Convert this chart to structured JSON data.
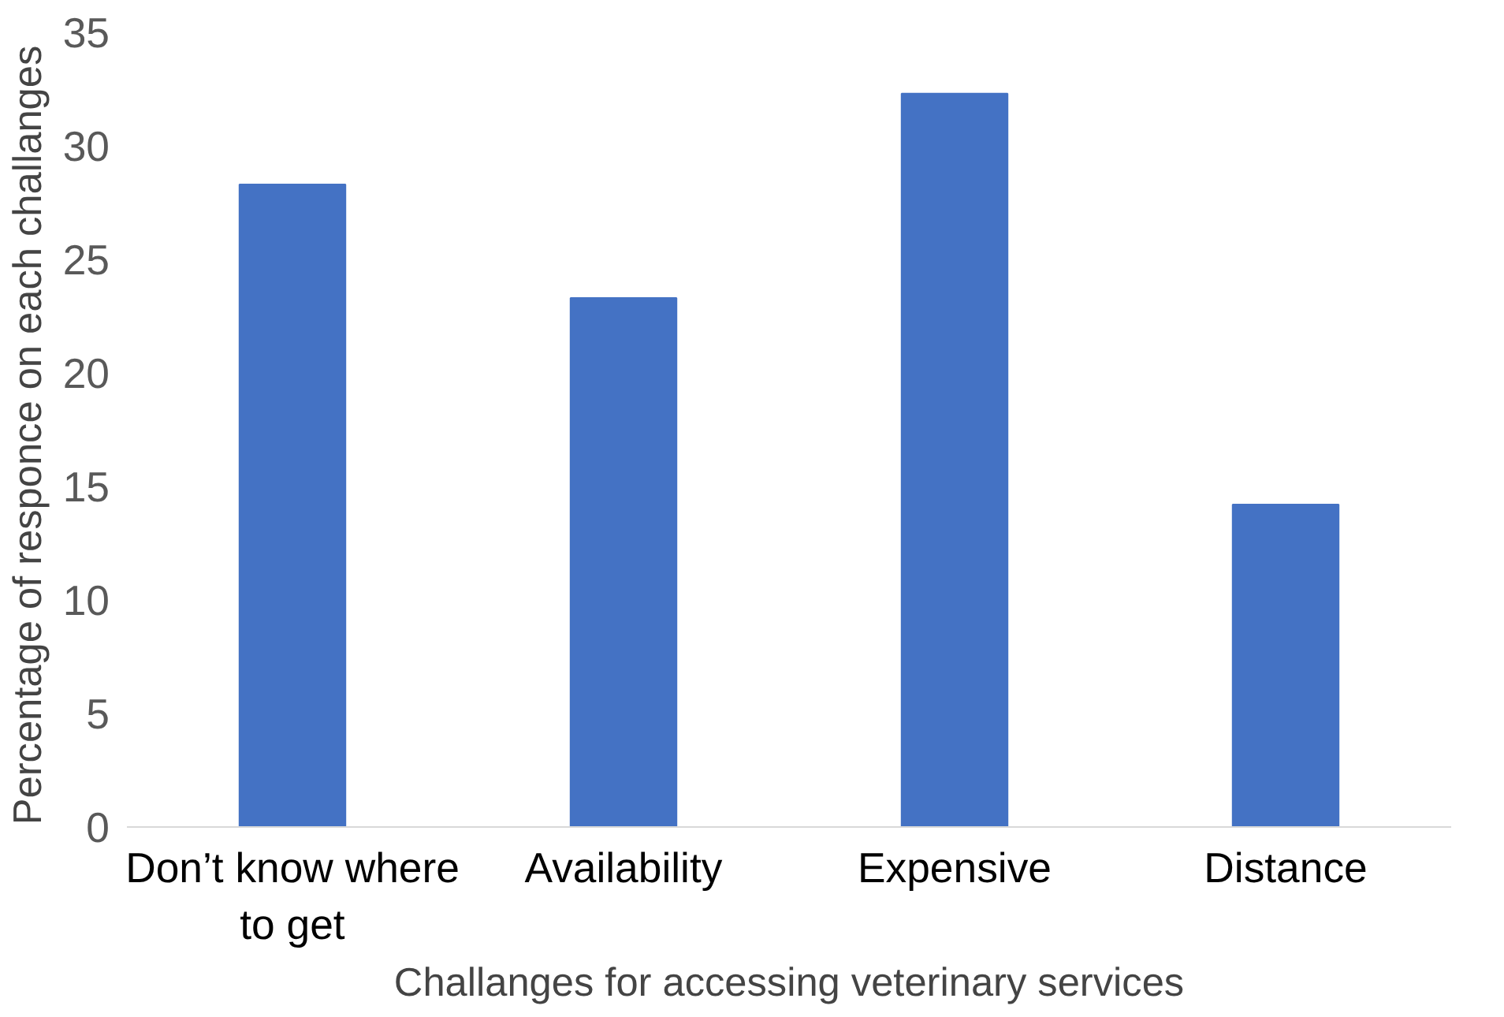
{
  "chart_data": {
    "type": "bar",
    "xlabel": "Challanges for accessing veterinary services",
    "ylabel": "Percentage of responce  on each challanges",
    "categories": [
      "Don’t know where to get",
      "Availability",
      "Expensive",
      "Distance"
    ],
    "values": [
      28.3,
      23.3,
      32.3,
      14.2
    ],
    "color": "#4472c4",
    "ylim": [
      0,
      35
    ],
    "yticks": [
      0,
      5,
      10,
      15,
      20,
      25,
      30,
      35
    ],
    "grid": false
  }
}
